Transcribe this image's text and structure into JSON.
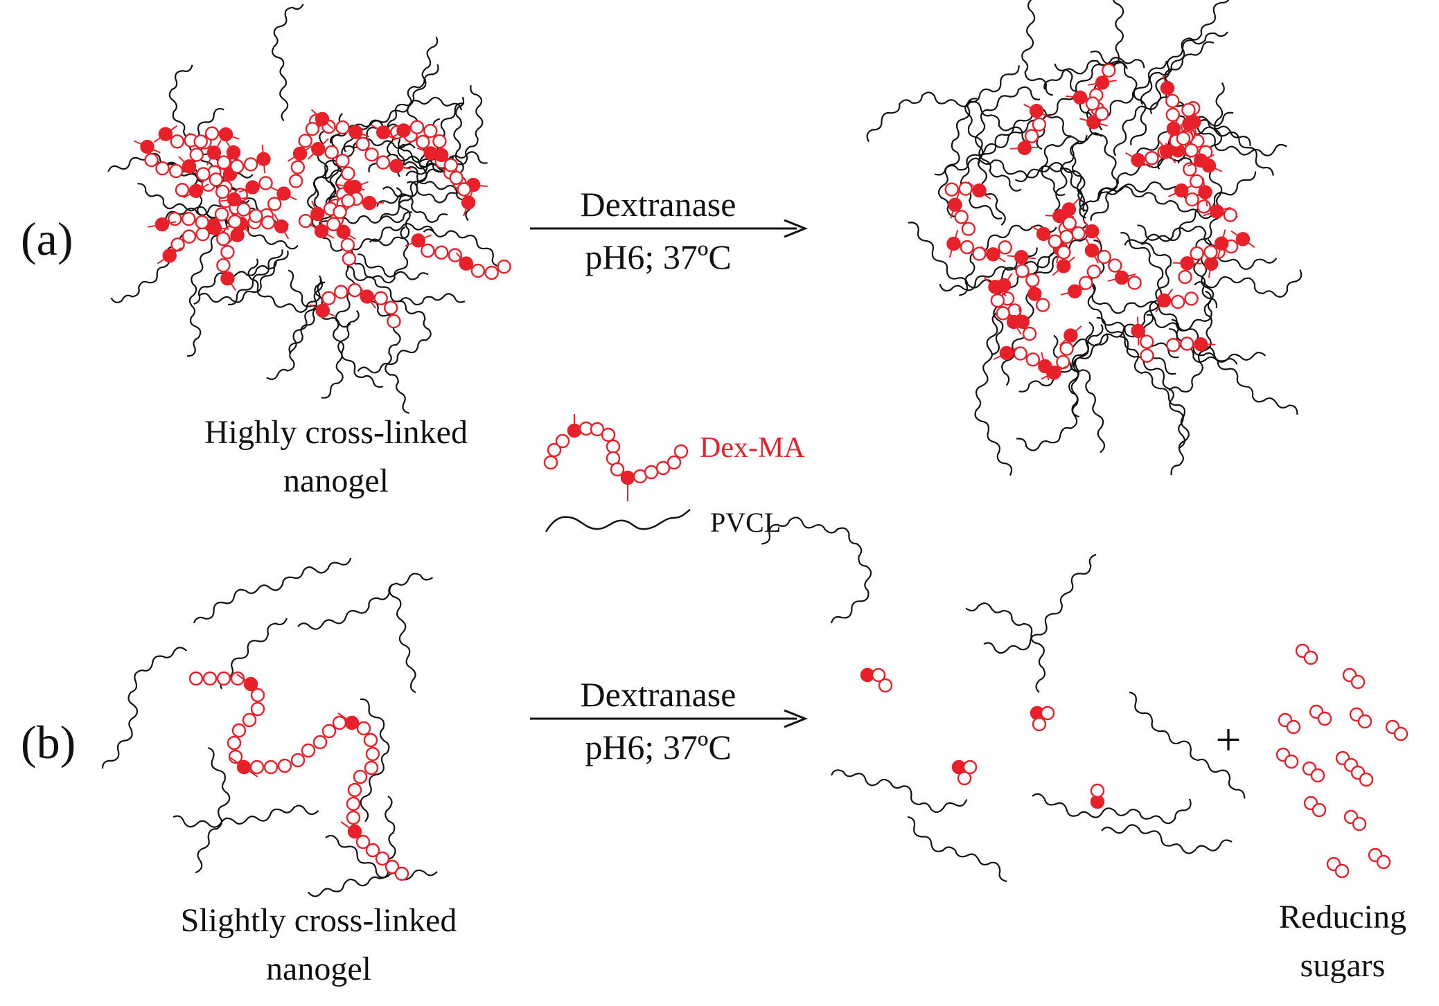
{
  "panels": [
    {
      "id": "a",
      "tag": "(a)",
      "reaction": {
        "enzyme": "Dextranase",
        "conditions": "pH6; 37ºC"
      },
      "before_label": [
        "Highly cross-linked",
        "nanogel"
      ]
    },
    {
      "id": "b",
      "tag": "(b)",
      "reaction": {
        "enzyme": "Dextranase",
        "conditions": "pH6; 37ºC"
      },
      "before_label": [
        "Slightly cross-linked",
        "nanogel"
      ],
      "plus": "+",
      "products_label": [
        "Reducing",
        "sugars"
      ]
    }
  ],
  "legend": {
    "dex": "Dex-MA",
    "pvcl": "PVCL"
  },
  "colors": {
    "dex": "#e8202a",
    "pvcl": "#111111"
  }
}
